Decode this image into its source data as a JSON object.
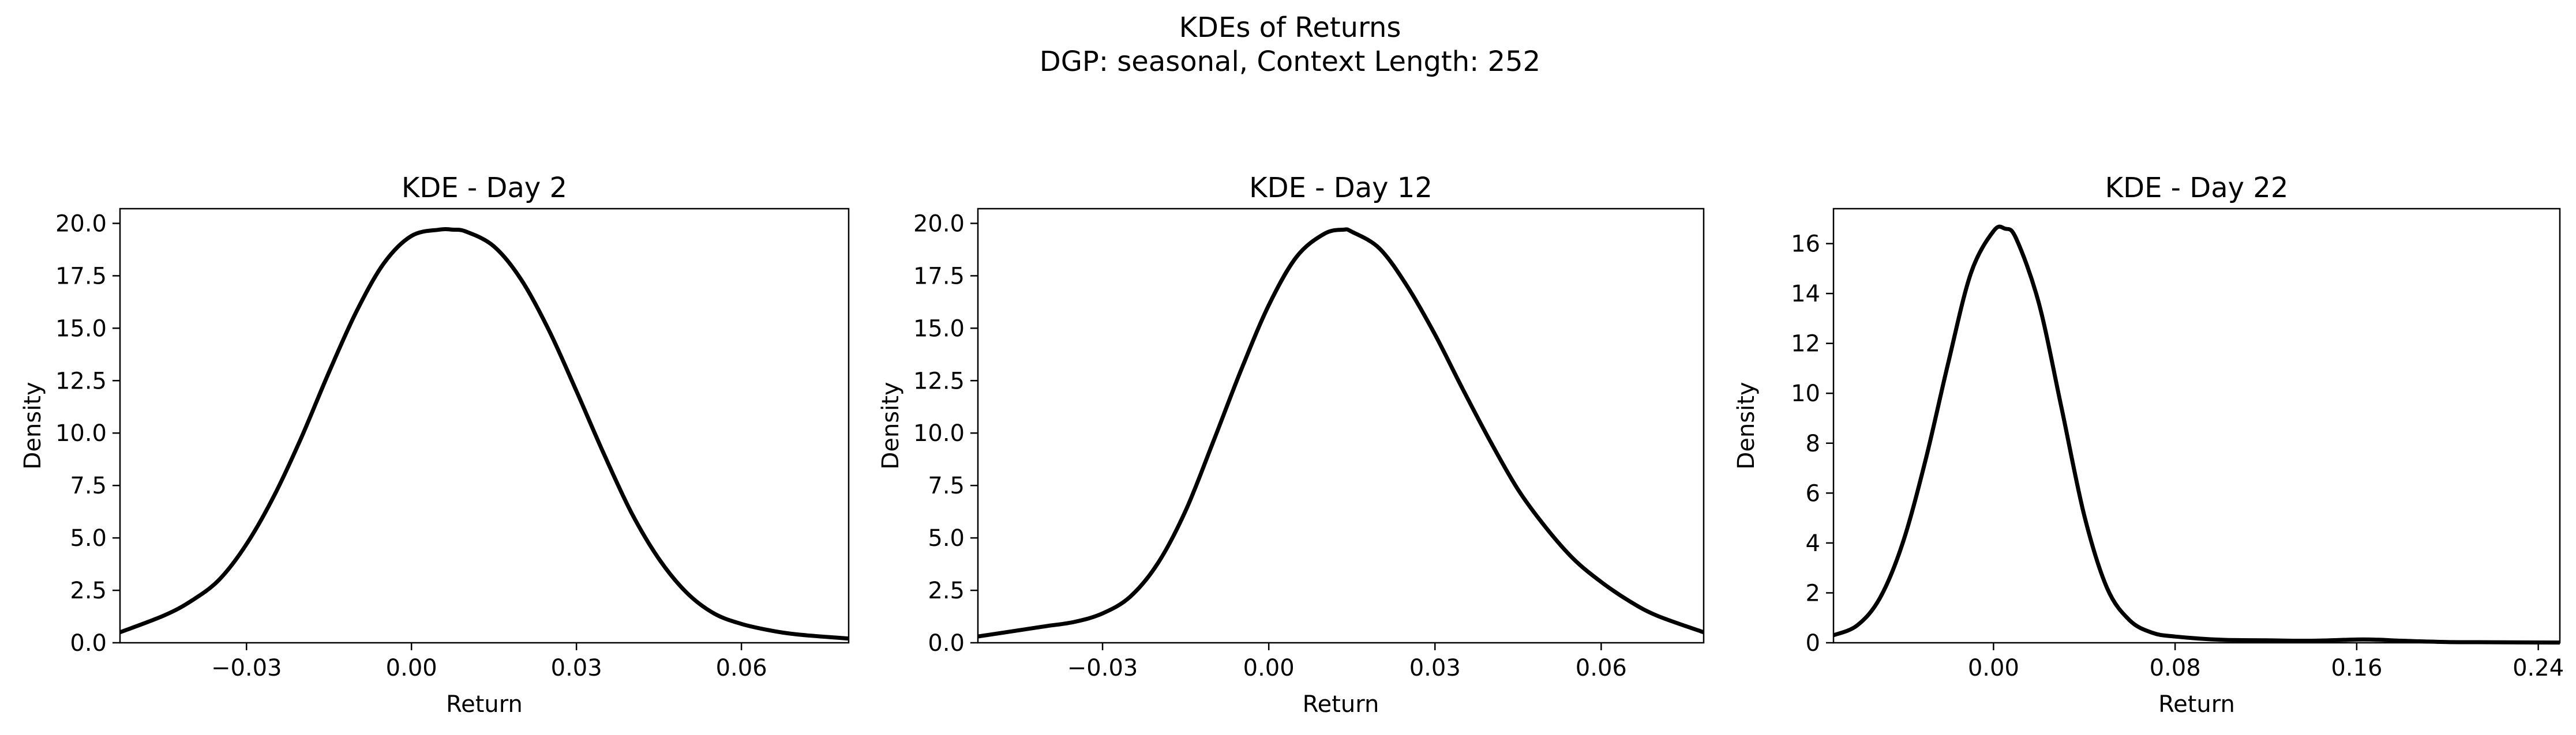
{
  "figure": {
    "suptitle_line1": "KDEs of Returns",
    "suptitle_line2": "DGP: seasonal, Context Length: 252"
  },
  "chart_data": [
    {
      "type": "line",
      "title": "KDE - Day 2",
      "xlabel": "Return",
      "ylabel": "Density",
      "xlim": [
        -0.053,
        0.0795
      ],
      "ylim": [
        0,
        20.7
      ],
      "xticks": [
        -0.03,
        0.0,
        0.03,
        0.06
      ],
      "xtick_labels": [
        "−0.03",
        "0.00",
        "0.03",
        "0.06"
      ],
      "yticks": [
        0,
        2.5,
        5,
        7.5,
        10,
        12.5,
        15,
        17.5,
        20
      ],
      "ytick_labels": [
        "0.0",
        "2.5",
        "5.0",
        "7.5",
        "10.0",
        "12.5",
        "15.0",
        "17.5",
        "20.0"
      ],
      "grid": false,
      "series": [
        {
          "color": "#000000",
          "x": [
            -0.053,
            -0.045,
            -0.04,
            -0.035,
            -0.03,
            -0.025,
            -0.02,
            -0.015,
            -0.01,
            -0.005,
            0.0,
            0.005,
            0.0075,
            0.01,
            0.015,
            0.02,
            0.025,
            0.03,
            0.035,
            0.04,
            0.045,
            0.05,
            0.055,
            0.06,
            0.065,
            0.07,
            0.0795
          ],
          "y": [
            0.5,
            1.3,
            2.0,
            3.0,
            4.7,
            7.0,
            9.8,
            12.9,
            15.8,
            18.1,
            19.4,
            19.7,
            19.7,
            19.6,
            18.9,
            17.3,
            14.9,
            12.0,
            9.0,
            6.2,
            4.0,
            2.4,
            1.4,
            0.9,
            0.6,
            0.4,
            0.2
          ]
        }
      ]
    },
    {
      "type": "line",
      "title": "KDE - Day 12",
      "xlabel": "Return",
      "ylabel": "Density",
      "xlim": [
        -0.0525,
        0.0785
      ],
      "ylim": [
        0,
        20.7
      ],
      "xticks": [
        -0.03,
        0.0,
        0.03,
        0.06
      ],
      "xtick_labels": [
        "−0.03",
        "0.00",
        "0.03",
        "0.06"
      ],
      "yticks": [
        0,
        2.5,
        5,
        7.5,
        10,
        12.5,
        15,
        17.5,
        20
      ],
      "ytick_labels": [
        "0.0",
        "2.5",
        "5.0",
        "7.5",
        "10.0",
        "12.5",
        "15.0",
        "17.5",
        "20.0"
      ],
      "grid": false,
      "series": [
        {
          "color": "#000000",
          "x": [
            -0.0525,
            -0.045,
            -0.04,
            -0.035,
            -0.03,
            -0.025,
            -0.02,
            -0.015,
            -0.01,
            -0.005,
            0.0,
            0.005,
            0.01,
            0.0135,
            0.015,
            0.02,
            0.025,
            0.03,
            0.035,
            0.04,
            0.045,
            0.05,
            0.055,
            0.06,
            0.065,
            0.07,
            0.0785
          ],
          "y": [
            0.3,
            0.6,
            0.8,
            1.0,
            1.4,
            2.2,
            3.8,
            6.3,
            9.6,
            13.0,
            16.1,
            18.4,
            19.5,
            19.7,
            19.6,
            18.8,
            17.0,
            14.7,
            12.1,
            9.6,
            7.3,
            5.5,
            4.0,
            2.9,
            2.0,
            1.3,
            0.5
          ]
        }
      ]
    },
    {
      "type": "line",
      "title": "KDE - Day 22",
      "xlabel": "Return",
      "ylabel": "Density",
      "xlim": [
        -0.0705,
        0.2495
      ],
      "ylim": [
        0,
        17.4
      ],
      "xticks": [
        0.0,
        0.08,
        0.16,
        0.24
      ],
      "xtick_labels": [
        "0.00",
        "0.08",
        "0.16",
        "0.24"
      ],
      "yticks": [
        0,
        2,
        4,
        6,
        8,
        10,
        12,
        14,
        16
      ],
      "ytick_labels": [
        "0",
        "2",
        "4",
        "6",
        "8",
        "10",
        "12",
        "14",
        "16"
      ],
      "grid": false,
      "series": [
        {
          "color": "#000000",
          "x": [
            -0.0705,
            -0.06,
            -0.05,
            -0.04,
            -0.03,
            -0.02,
            -0.01,
            0.0,
            0.005,
            0.01,
            0.02,
            0.03,
            0.04,
            0.05,
            0.06,
            0.07,
            0.08,
            0.1,
            0.12,
            0.14,
            0.16,
            0.17,
            0.18,
            0.2,
            0.22,
            0.2495
          ],
          "y": [
            0.3,
            0.7,
            1.8,
            4.0,
            7.3,
            11.2,
            14.8,
            16.5,
            16.6,
            16.2,
            13.6,
            9.4,
            5.1,
            2.2,
            0.9,
            0.4,
            0.25,
            0.12,
            0.1,
            0.08,
            0.13,
            0.12,
            0.08,
            0.03,
            0.02,
            0.01
          ]
        }
      ]
    }
  ]
}
